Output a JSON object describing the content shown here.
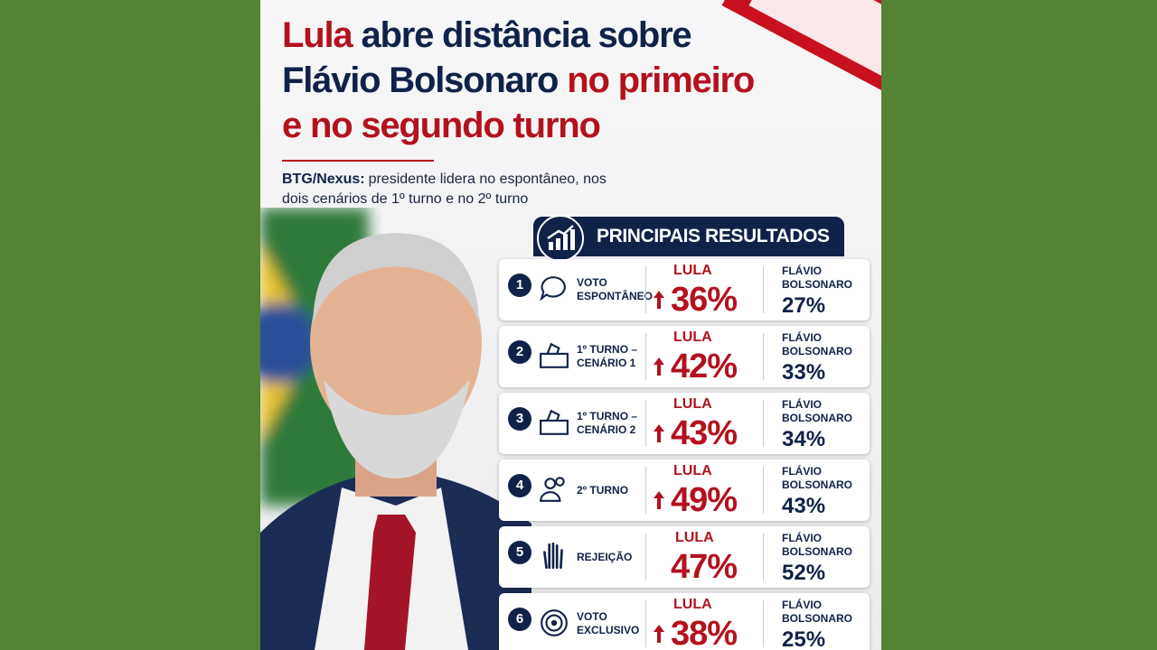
{
  "title": [
    [
      {
        "text": "Lula",
        "accent": true
      },
      {
        "text": "abre distância sobre",
        "accent": false
      }
    ],
    [
      {
        "text": "Flávio Bolsonaro",
        "accent": false
      },
      {
        "text": "no primeiro",
        "accent": true
      }
    ],
    [
      {
        "text": "e no segundo turno",
        "accent": true
      }
    ]
  ],
  "subtitle": {
    "lead": "BTG/Nexus:",
    "text": "presidente lidera no espontâneo, nos dois cenários de 1º turno e no 2º turno"
  },
  "badge": "PRINCIPAIS RESULTADOS",
  "rows": [
    {
      "number": "1",
      "label": "VOTO ESPONTÂNEO",
      "lula_label": "LULA",
      "lula_value": "36%",
      "lula_up": true,
      "flavio_label": "FLÁVIO BOLSONARO",
      "flavio_value": "27%"
    },
    {
      "number": "2",
      "label": "1º TURNO – CENÁRIO 1",
      "lula_label": "LULA",
      "lula_value": "42%",
      "lula_up": true,
      "flavio_label": "FLÁVIO BOLSONARO",
      "flavio_value": "33%"
    },
    {
      "number": "3",
      "label": "1º TURNO – CENÁRIO 2",
      "lula_label": "LULA",
      "lula_value": "43%",
      "lula_up": true,
      "flavio_label": "FLÁVIO BOLSONARO",
      "flavio_value": "34%"
    },
    {
      "number": "4",
      "label": "2º TURNO",
      "lula_label": "LULA",
      "lula_value": "49%",
      "lula_up": true,
      "flavio_label": "FLÁVIO BOLSONARO",
      "flavio_value": "43%"
    },
    {
      "number": "5",
      "label": "REJEIÇÃO",
      "lula_label": "LULA",
      "lula_value": "47%",
      "lula_up": false,
      "flavio_label": "FLÁVIO BOLSONARO",
      "flavio_value": "52%"
    },
    {
      "number": "6",
      "label": "VOTO EXCLUSIVO",
      "lula_label": "LULA",
      "lula_value": "38%",
      "lula_up": true,
      "flavio_label": "FLÁVIO BOLSONARO",
      "flavio_value": "25%"
    }
  ]
}
